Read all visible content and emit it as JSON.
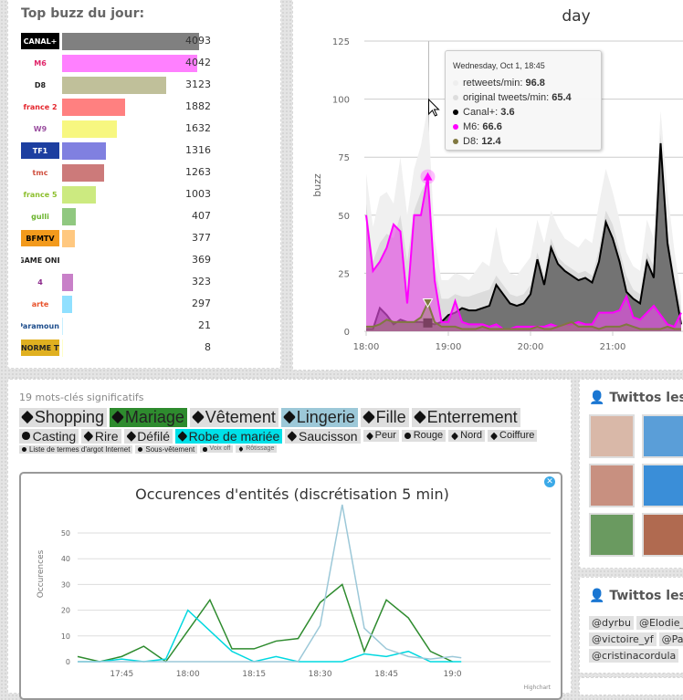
{
  "buzz": {
    "title": "Top buzz du jour:",
    "max": 4093,
    "channels": [
      {
        "logo": "CANAL+",
        "value": 4093,
        "color": "#808080",
        "logo_bg": "#000",
        "logo_fg": "#fff"
      },
      {
        "logo": "M6",
        "value": 4042,
        "color": "#ff80ff",
        "logo_bg": "#fff",
        "logo_fg": "#e0266a"
      },
      {
        "logo": "D8",
        "value": 3123,
        "color": "#c0c09a",
        "logo_bg": "#fff",
        "logo_fg": "#222"
      },
      {
        "logo": "france 2",
        "value": 1882,
        "color": "#ff8080",
        "logo_bg": "#fff",
        "logo_fg": "#e4262d"
      },
      {
        "logo": "W9",
        "value": 1632,
        "color": "#f7f780",
        "logo_bg": "#fff",
        "logo_fg": "#9b4fa0"
      },
      {
        "logo": "TF1",
        "value": 1316,
        "color": "#8080e0",
        "logo_bg": "#1d3fa0",
        "logo_fg": "#fff"
      },
      {
        "logo": "tmc",
        "value": 1263,
        "color": "#cc7a7a",
        "logo_bg": "#fff",
        "logo_fg": "#d05040"
      },
      {
        "logo": "france 5",
        "value": 1003,
        "color": "#ccea80",
        "logo_bg": "#fff",
        "logo_fg": "#8dbf2e"
      },
      {
        "logo": "gulli",
        "value": 407,
        "color": "#90c880",
        "logo_bg": "#fff",
        "logo_fg": "#6ab42d"
      },
      {
        "logo": "BFMTV",
        "value": 377,
        "color": "#ffc880",
        "logo_bg": "#f39a1c",
        "logo_fg": "#000"
      },
      {
        "logo": "GAME ONE",
        "value": 369,
        "color": "#ffffff",
        "logo_bg": "#fff",
        "logo_fg": "#222"
      },
      {
        "logo": "4",
        "value": 323,
        "color": "#c880c8",
        "logo_bg": "#fff",
        "logo_fg": "#8c2a8c"
      },
      {
        "logo": "arte",
        "value": 297,
        "color": "#90e0ff",
        "logo_bg": "#fff",
        "logo_fg": "#e8512a"
      },
      {
        "logo": "Paramount",
        "value": 21,
        "color": "#c8f0ff",
        "logo_bg": "#fff",
        "logo_fg": "#1d4d8c"
      },
      {
        "logo": "ENORME TV",
        "value": 8,
        "color": "#ffffc8",
        "logo_bg": "#e0b020",
        "logo_fg": "#222"
      }
    ]
  },
  "chart_data": [
    {
      "type": "area",
      "title": "day",
      "ylabel": "buzz",
      "ylim": [
        0,
        125
      ],
      "yticks": [
        0,
        25,
        50,
        75,
        100,
        125
      ],
      "xticks": [
        "18:00",
        "19:00",
        "20:00",
        "21:00"
      ],
      "grid": true,
      "x": [
        "18:00",
        "18:05",
        "18:10",
        "18:15",
        "18:20",
        "18:25",
        "18:30",
        "18:35",
        "18:40",
        "18:45",
        "18:50",
        "18:55",
        "19:00",
        "19:05",
        "19:10",
        "19:15",
        "19:20",
        "19:25",
        "19:30",
        "19:35",
        "19:40",
        "19:45",
        "19:50",
        "19:55",
        "20:00",
        "20:05",
        "20:10",
        "20:15",
        "20:20",
        "20:25",
        "20:30",
        "20:35",
        "20:40",
        "20:45",
        "20:50",
        "20:55",
        "21:00",
        "21:05",
        "21:10",
        "21:15",
        "21:20",
        "21:25",
        "21:30",
        "21:35",
        "21:40",
        "21:45",
        "21:50"
      ],
      "series": [
        {
          "name": "retweets/min",
          "color": "#f0f0f0",
          "values": [
            68,
            45,
            58,
            60,
            55,
            75,
            50,
            70,
            80,
            96.8,
            40,
            22,
            22,
            25,
            24,
            22,
            26,
            30,
            28,
            45,
            30,
            25,
            24,
            28,
            32,
            48,
            38,
            52,
            45,
            40,
            38,
            36,
            40,
            38,
            55,
            70,
            60,
            48,
            34,
            28,
            26,
            48,
            40,
            95,
            60,
            35,
            15
          ]
        },
        {
          "name": "original tweets/min",
          "color": "#dcdcdc",
          "values": [
            55,
            30,
            38,
            42,
            40,
            50,
            30,
            52,
            60,
            65.4,
            28,
            14,
            14,
            16,
            15,
            15,
            16,
            17,
            18,
            24,
            20,
            16,
            15,
            16,
            20,
            34,
            24,
            40,
            32,
            29,
            27,
            25,
            26,
            24,
            35,
            52,
            46,
            35,
            24,
            18,
            16,
            34,
            28,
            85,
            42,
            24,
            10
          ]
        },
        {
          "name": "Canal+",
          "color": "#000000",
          "fill": "rgba(80,80,80,0.75)",
          "values": [
            1,
            1,
            10,
            7,
            3,
            5,
            4,
            4,
            4,
            3.6,
            3,
            4,
            7,
            8,
            10,
            9,
            9,
            10,
            11,
            20,
            16,
            12,
            11,
            12,
            16,
            31,
            20,
            36,
            29,
            26,
            24,
            22,
            23,
            21,
            30,
            47,
            40,
            30,
            17,
            14,
            12,
            30,
            23,
            81,
            38,
            20,
            3
          ]
        },
        {
          "name": "M6",
          "color": "#ff00ff",
          "fill": "rgba(230,80,230,0.65)",
          "values": [
            50,
            26,
            30,
            36,
            46,
            43,
            12,
            50,
            50,
            66.6,
            22,
            4,
            4,
            13,
            4,
            3,
            3,
            3,
            2,
            3,
            1,
            1,
            2,
            2,
            2,
            2,
            2,
            3,
            2,
            3,
            3,
            4,
            3,
            3,
            8,
            8,
            8,
            9,
            15,
            6,
            5,
            8,
            11,
            7,
            3,
            2,
            8
          ]
        },
        {
          "name": "D8",
          "color": "#807840",
          "fill": "rgba(128,120,64,0.35)",
          "values": [
            2,
            2,
            3,
            5,
            4,
            4,
            4,
            4,
            6,
            12.4,
            4,
            2,
            2,
            2,
            1,
            1,
            1,
            2,
            1,
            1,
            1,
            1,
            1,
            1,
            1,
            2,
            1,
            1,
            2,
            3,
            4,
            2,
            2,
            2,
            1,
            2,
            2,
            2,
            3,
            2,
            1,
            1,
            1,
            1,
            2,
            1,
            1
          ]
        }
      ],
      "tooltip": {
        "date": "Wednesday, Oct 1, 18:45",
        "rows": [
          {
            "label": "retweets/min: ",
            "value": "96.8",
            "color": "#eeeeee"
          },
          {
            "label": "original tweets/min: ",
            "value": "65.4",
            "color": "#dddddd"
          },
          {
            "label": "Canal+: ",
            "value": "3.6",
            "color": "#000000"
          },
          {
            "label": "M6: ",
            "value": "66.6",
            "color": "#ff00ff"
          },
          {
            "label": "D8: ",
            "value": "12.4",
            "color": "#807840"
          }
        ]
      }
    },
    {
      "type": "line",
      "title": "Occurences d'entités (discrétisation 5 min)",
      "ylabel": "Occurences",
      "ylim": [
        0,
        62
      ],
      "yticks": [
        0,
        10,
        20,
        30,
        40,
        50
      ],
      "xticks": [
        "17:45",
        "18:00",
        "18:15",
        "18:30",
        "18:45",
        "19:0"
      ],
      "grid": true,
      "credit": "Highchart",
      "x": [
        "17:35",
        "17:40",
        "17:45",
        "17:50",
        "17:55",
        "18:00",
        "18:05",
        "18:10",
        "18:15",
        "18:20",
        "18:25",
        "18:30",
        "18:35",
        "18:40",
        "18:45",
        "18:50",
        "18:55",
        "19:00",
        "19:02"
      ],
      "series": [
        {
          "color": "#2e8b2e",
          "values": [
            2,
            0,
            2,
            6,
            0,
            12,
            24,
            5,
            5,
            8,
            9,
            23,
            30,
            4,
            24,
            17,
            4,
            0,
            null
          ]
        },
        {
          "color": "#00d8e0",
          "values": [
            0,
            0,
            1,
            0,
            1,
            20,
            12,
            4,
            0,
            2,
            0,
            0,
            0,
            3,
            2,
            4,
            0,
            0,
            0
          ]
        },
        {
          "color": "#9cc8d8",
          "values": [
            0,
            0,
            0,
            0,
            0,
            0,
            0,
            0,
            0,
            0,
            0,
            14,
            61,
            13,
            5,
            2,
            1,
            2,
            1.5
          ]
        }
      ]
    }
  ],
  "keywords": {
    "title": "19 mots-clés significatifs",
    "tags": [
      {
        "label": "Shopping",
        "size": 1,
        "icon": "tag",
        "bg": "#dedede"
      },
      {
        "label": "Mariage",
        "size": 1,
        "icon": "tag",
        "bg": "#2e8b2e"
      },
      {
        "label": "Vêtement",
        "size": 1,
        "icon": "tag",
        "bg": "#dedede"
      },
      {
        "label": "Lingerie",
        "size": 1,
        "icon": "tag",
        "bg": "#9cc8d8"
      },
      {
        "label": "Fille",
        "size": 1,
        "icon": "tag",
        "bg": "#dedede"
      },
      {
        "label": "Enterrement",
        "size": 1,
        "icon": "tag",
        "bg": "#dedede"
      },
      {
        "label": "Casting",
        "size": 2,
        "icon": "globe",
        "bg": "#dedede"
      },
      {
        "label": "Rire",
        "size": 2,
        "icon": "tag",
        "bg": "#dedede"
      },
      {
        "label": "Défilé",
        "size": 2,
        "icon": "tag",
        "bg": "#dedede"
      },
      {
        "label": "Robe de mariée",
        "size": 2,
        "icon": "tag",
        "bg": "#00e0e8"
      },
      {
        "label": "Saucisson",
        "size": 2,
        "icon": "tag",
        "bg": "#dedede"
      },
      {
        "label": "Peur",
        "size": 2,
        "icon": "tag",
        "bg": "#dedede",
        "small": true
      },
      {
        "label": "Rouge",
        "size": 2,
        "icon": "globe",
        "bg": "#dedede",
        "small": true
      },
      {
        "label": "Nord",
        "size": 2,
        "icon": "tag",
        "bg": "#dedede",
        "small": true
      },
      {
        "label": "Coiffure",
        "size": 2,
        "icon": "tag",
        "bg": "#dedede",
        "small": true
      },
      {
        "label": "Liste de termes d'argot Internet",
        "size": 3,
        "icon": "globe",
        "bg": "#dedede"
      },
      {
        "label": "Sous-vêtement",
        "size": 3,
        "icon": "globe",
        "bg": "#dedede"
      },
      {
        "label": "Voix off",
        "size": 4,
        "icon": "globe",
        "bg": "#dedede"
      },
      {
        "label": "Rôtissage",
        "size": 4,
        "icon": "tag",
        "bg": "#dedede"
      }
    ]
  },
  "twittos1": {
    "title": "Twittos les pl",
    "avatars": [
      "#d9b8a8",
      "#5a9ed8",
      "#c89080",
      "#3a8ed8",
      "#6a9a60",
      "#b06a50"
    ]
  },
  "twittos2": {
    "title": "Twittos les pl",
    "handles": [
      "@dyrbu",
      "@Elodie_",
      "@victoire_yf",
      "@Pa",
      "@cristinacordula"
    ]
  }
}
